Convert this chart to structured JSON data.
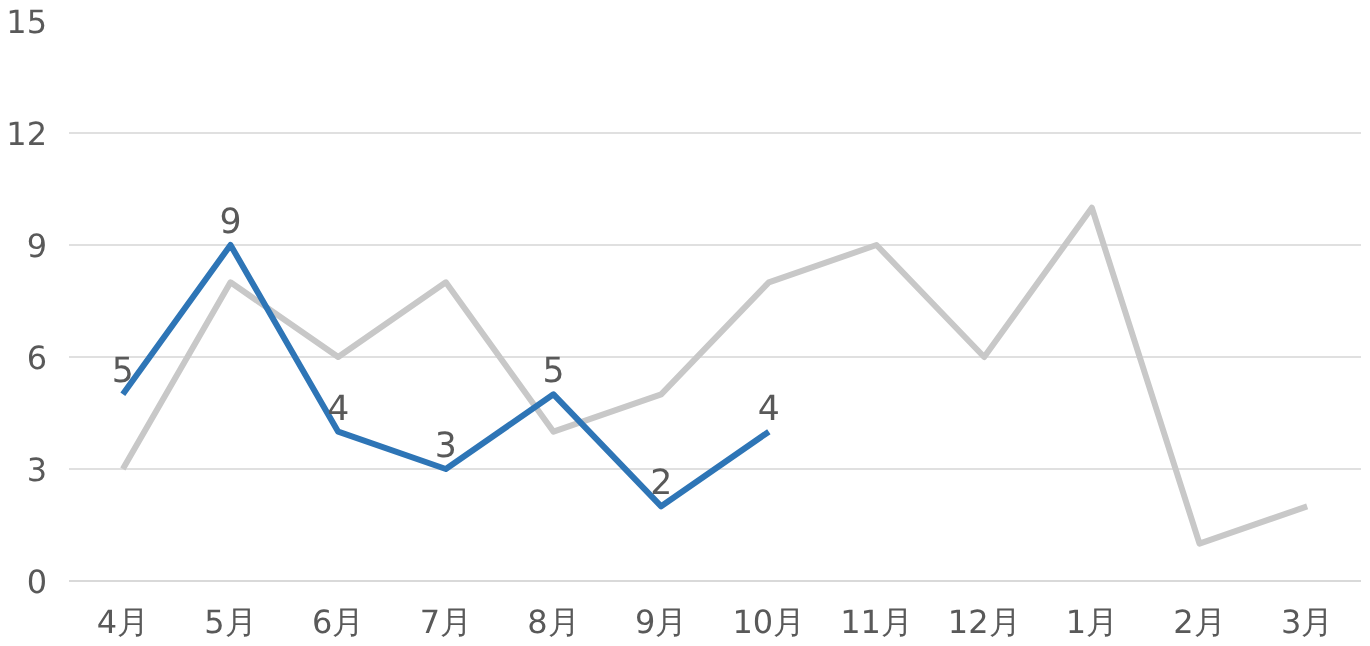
{
  "chart_data": {
    "type": "line",
    "categories": [
      "4月",
      "5月",
      "6月",
      "7月",
      "8月",
      "9月",
      "10月",
      "11月",
      "12月",
      "1月",
      "2月",
      "3月"
    ],
    "series": [
      {
        "color": "#c8c8c8",
        "values": [
          3,
          8,
          6,
          8,
          4,
          5,
          8,
          9,
          6,
          10,
          1,
          2
        ]
      },
      {
        "color": "#2e75b6",
        "values": [
          5,
          9,
          4,
          3,
          5,
          2,
          4,
          null,
          null,
          null,
          null,
          null
        ],
        "value_labels": [
          "5",
          "9",
          "4",
          "3",
          "5",
          "2",
          "4",
          null,
          null,
          null,
          null,
          null
        ]
      }
    ],
    "ylim": [
      0,
      15
    ],
    "yticks": [
      0,
      3,
      6,
      9,
      12,
      15
    ],
    "grid": "y",
    "marker": "none",
    "line_style": "solid"
  }
}
